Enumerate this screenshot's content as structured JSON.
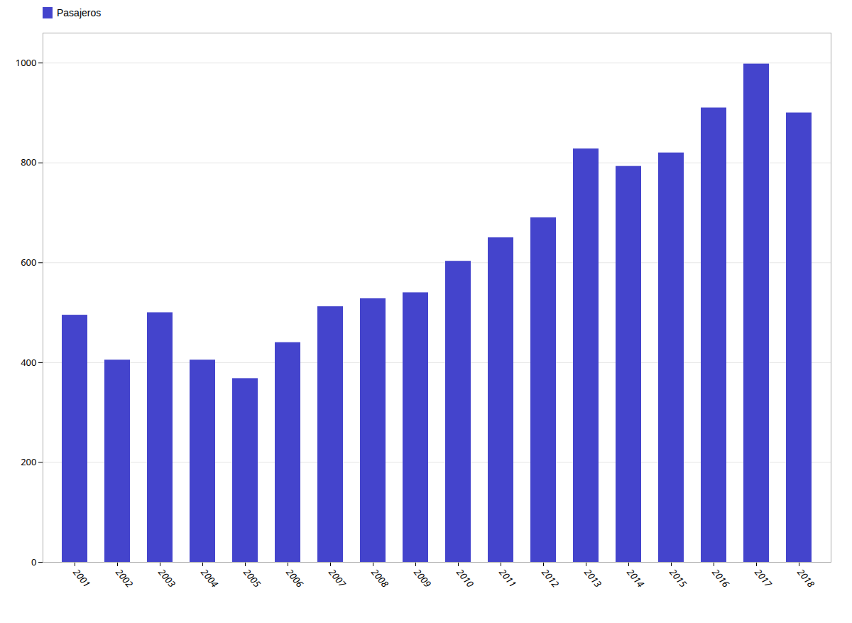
{
  "chart_data": {
    "type": "bar",
    "categories": [
      "2001",
      "2002",
      "2003",
      "2004",
      "2005",
      "2006",
      "2007",
      "2008",
      "2009",
      "2010",
      "2011",
      "2012",
      "2013",
      "2014",
      "2015",
      "2016",
      "2017",
      "2018"
    ],
    "series": [
      {
        "name": "Pasajeros",
        "color": "#4444cc",
        "values": [
          495,
          405,
          500,
          405,
          368,
          440,
          512,
          528,
          540,
          603,
          650,
          690,
          828,
          793,
          820,
          910,
          998,
          900
        ]
      }
    ],
    "ylim": [
      0,
      1060
    ],
    "yticks": [
      0,
      200,
      400,
      600,
      800,
      1000
    ],
    "grid": true,
    "legend": "upper left"
  }
}
